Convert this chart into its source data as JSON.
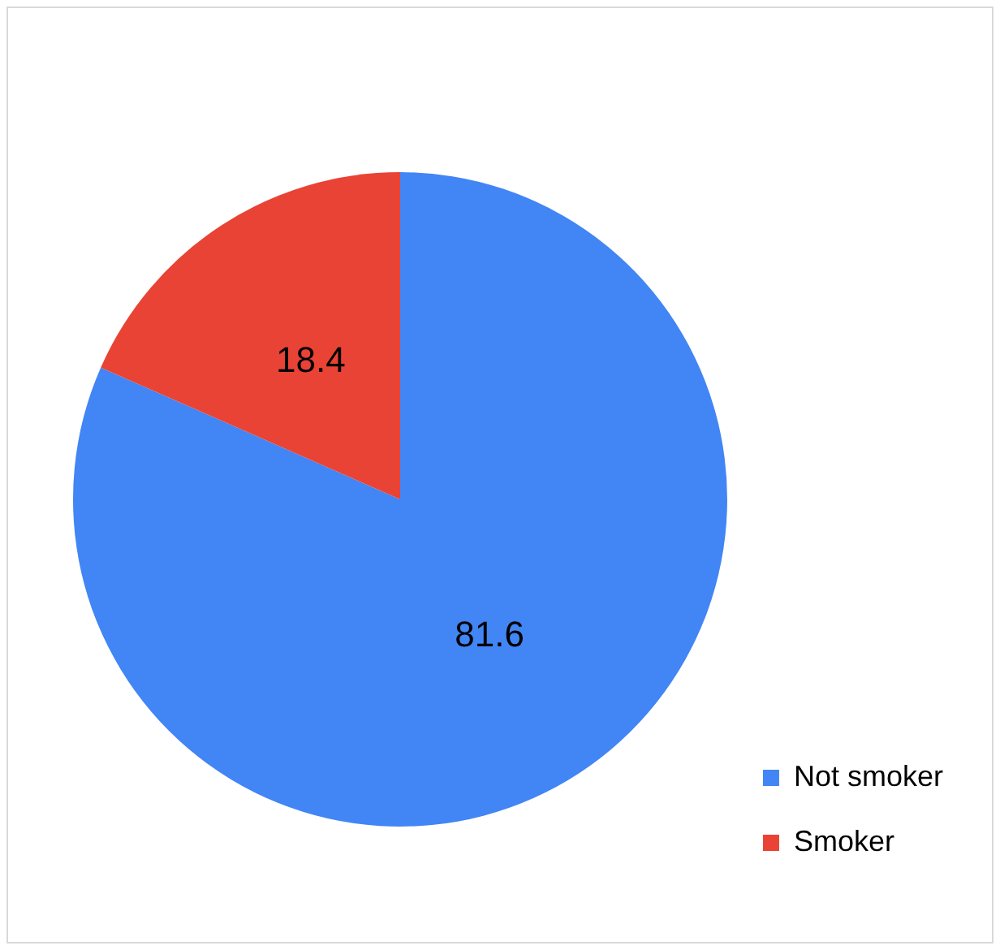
{
  "chart_data": {
    "type": "pie",
    "categories": [
      "Not smoker",
      "Smoker"
    ],
    "values": [
      81.6,
      18.4
    ],
    "colors": [
      "#4285f4",
      "#e84335"
    ],
    "data_labels": true,
    "legend": "bottom right"
  }
}
